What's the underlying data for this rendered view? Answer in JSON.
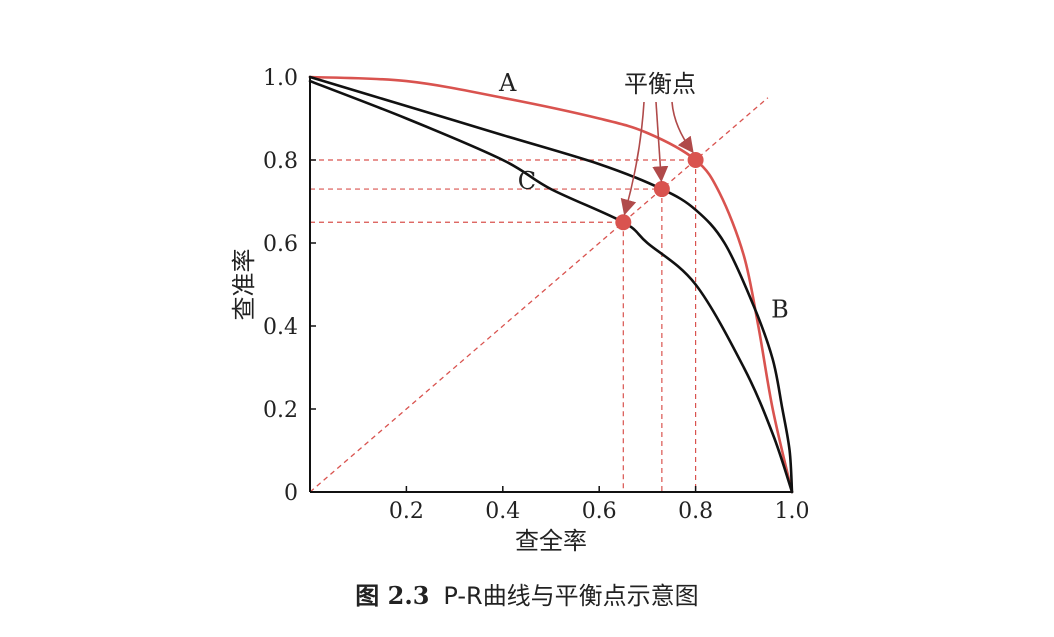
{
  "chart_data": {
    "type": "line",
    "xlabel": "查全率",
    "ylabel": "查准率",
    "xlim": [
      0,
      1.0
    ],
    "ylim": [
      0,
      1.0
    ],
    "x_ticks": [
      "0.2",
      "0.4",
      "0.6",
      "0.8",
      "1.0"
    ],
    "y_ticks": [
      "0",
      "0.2",
      "0.4",
      "0.6",
      "0.8",
      "1.0"
    ],
    "grid": false,
    "series": [
      {
        "name": "A",
        "color": "#d9534f",
        "points": [
          [
            0,
            1.0
          ],
          [
            0.2,
            0.99
          ],
          [
            0.4,
            0.95
          ],
          [
            0.6,
            0.9
          ],
          [
            0.7,
            0.865
          ],
          [
            0.8,
            0.8
          ],
          [
            0.85,
            0.72
          ],
          [
            0.9,
            0.57
          ],
          [
            0.93,
            0.4
          ],
          [
            0.96,
            0.2
          ],
          [
            1.0,
            0
          ]
        ]
      },
      {
        "name": "B",
        "color": "#111111",
        "points": [
          [
            0,
            1.0
          ],
          [
            0.2,
            0.93
          ],
          [
            0.4,
            0.86
          ],
          [
            0.6,
            0.79
          ],
          [
            0.73,
            0.73
          ],
          [
            0.8,
            0.68
          ],
          [
            0.86,
            0.6
          ],
          [
            0.92,
            0.45
          ],
          [
            0.96,
            0.32
          ],
          [
            0.98,
            0.2
          ],
          [
            0.995,
            0.1
          ],
          [
            1.0,
            0
          ]
        ]
      },
      {
        "name": "C",
        "color": "#111111",
        "points": [
          [
            0,
            0.99
          ],
          [
            0.2,
            0.9
          ],
          [
            0.4,
            0.8
          ],
          [
            0.5,
            0.73
          ],
          [
            0.65,
            0.65
          ],
          [
            0.7,
            0.6
          ],
          [
            0.8,
            0.5
          ],
          [
            0.9,
            0.3
          ],
          [
            0.96,
            0.14
          ],
          [
            1.0,
            0
          ]
        ]
      }
    ],
    "diagonal": {
      "style": "dashed",
      "color": "#d9534f"
    },
    "break_even_points": [
      {
        "curve": "A",
        "x": 0.8,
        "y": 0.8
      },
      {
        "curve": "B",
        "x": 0.73,
        "y": 0.73
      },
      {
        "curve": "C",
        "x": 0.65,
        "y": 0.65
      }
    ],
    "annotation": "平衡点"
  },
  "caption": {
    "number": "图 2.3",
    "text": "P-R曲线与平衡点示意图"
  }
}
